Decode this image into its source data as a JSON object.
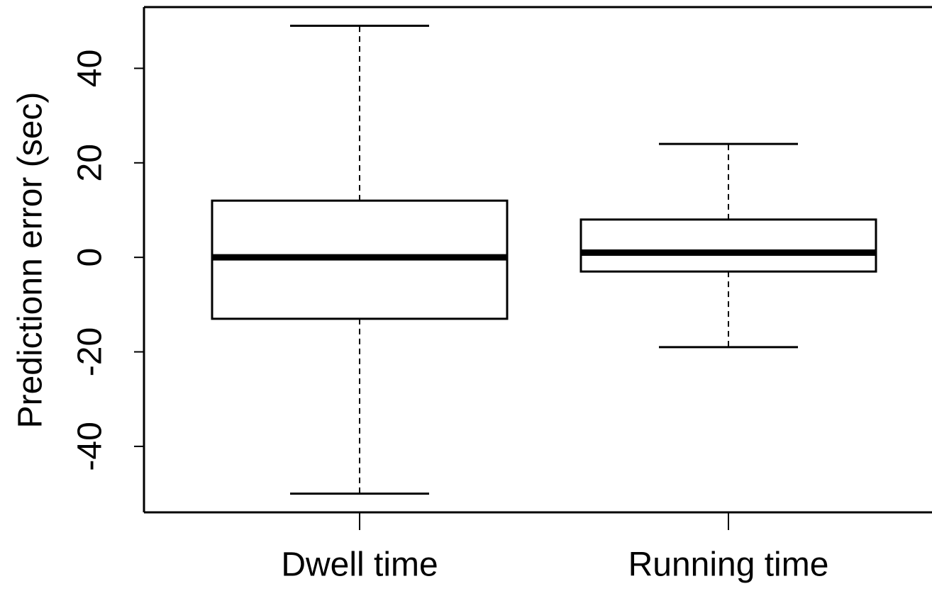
{
  "chart_data": {
    "type": "boxplot",
    "y_label": "Predictionn error (sec)",
    "categories": [
      "Dwell time",
      "Running time"
    ],
    "boxes": [
      {
        "min": -50,
        "q1": -13,
        "median": 0,
        "q3": 12,
        "max": 49
      },
      {
        "min": -19,
        "q1": -3,
        "median": 1,
        "q3": 8,
        "max": 24
      }
    ],
    "color": "#000000",
    "ylim": [
      -53.96,
      52.96
    ],
    "yticks": [
      -40,
      -20,
      0,
      20,
      40
    ]
  }
}
